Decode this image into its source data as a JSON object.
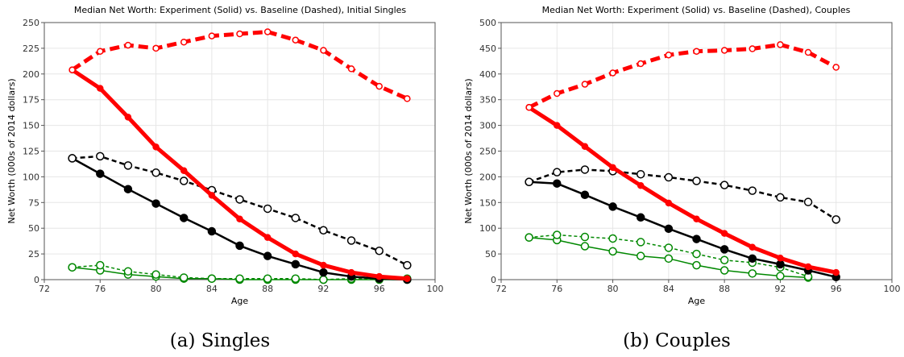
{
  "chart_data": [
    {
      "type": "line",
      "title": "Median Net Worth: Experiment (Solid) vs. Baseline (Dashed), Initial Singles",
      "xlabel": "Age",
      "ylabel": "Net Worth (000s of 2014 dollars)",
      "caption": "(a) Singles",
      "xlim": [
        72,
        100
      ],
      "ylim": [
        0,
        250
      ],
      "xticks": [
        72,
        76,
        80,
        84,
        88,
        92,
        96,
        100
      ],
      "yticks": [
        0,
        25,
        50,
        75,
        100,
        125,
        150,
        175,
        200,
        225,
        250
      ],
      "grid": true,
      "series": [
        {
          "color": "#ff0000",
          "style": "solid",
          "marker": "filled",
          "width": 5,
          "x": [
            74,
            76,
            78,
            80,
            82,
            84,
            86,
            88,
            90,
            92,
            94,
            96,
            98
          ],
          "y": [
            204,
            186,
            158,
            129,
            106,
            82,
            59,
            41,
            25,
            14,
            7,
            3,
            1
          ]
        },
        {
          "color": "#ff0000",
          "style": "dashed",
          "marker": "open",
          "width": 5,
          "x": [
            74,
            76,
            78,
            80,
            82,
            84,
            86,
            88,
            90,
            92,
            94,
            96,
            98
          ],
          "y": [
            204,
            222,
            228,
            225,
            231,
            237,
            239,
            241,
            233,
            223,
            205,
            188,
            176
          ]
        },
        {
          "color": "#000000",
          "style": "solid",
          "marker": "filled",
          "width": 2.5,
          "x": [
            74,
            76,
            78,
            80,
            82,
            84,
            86,
            88,
            90,
            92,
            94,
            96,
            98
          ],
          "y": [
            118,
            103,
            88,
            74,
            60,
            47,
            33,
            23,
            15,
            7,
            3,
            1,
            0
          ]
        },
        {
          "color": "#000000",
          "style": "dashed",
          "marker": "open",
          "width": 2.5,
          "x": [
            74,
            76,
            78,
            80,
            82,
            84,
            86,
            88,
            90,
            92,
            94,
            96,
            98
          ],
          "y": [
            118,
            120,
            111,
            104,
            96,
            87,
            78,
            69,
            60,
            48,
            38,
            28,
            14
          ]
        },
        {
          "color": "#008800",
          "style": "solid",
          "marker": "open",
          "width": 1.5,
          "x": [
            74,
            76,
            78,
            80,
            82,
            84,
            86,
            88,
            90,
            92,
            94,
            96,
            98
          ],
          "y": [
            12,
            9,
            5,
            3,
            1,
            1,
            0,
            0,
            0,
            0,
            0,
            0,
            0
          ]
        },
        {
          "color": "#008800",
          "style": "dashed",
          "marker": "open",
          "width": 1.5,
          "x": [
            74,
            76,
            78,
            80,
            82,
            84,
            86,
            88,
            90,
            92,
            94,
            96,
            98
          ],
          "y": [
            12,
            14,
            8,
            5,
            2,
            1,
            1,
            1,
            1,
            0,
            1,
            1,
            1
          ]
        }
      ]
    },
    {
      "type": "line",
      "title": "Median Net Worth: Experiment (Solid) vs. Baseline (Dashed), Couples",
      "xlabel": "Age",
      "ylabel": "Net Worth (000s of 2014 dollars)",
      "caption": "(b) Couples",
      "xlim": [
        72,
        100
      ],
      "ylim": [
        0,
        500
      ],
      "xticks": [
        72,
        76,
        80,
        84,
        88,
        92,
        96,
        100
      ],
      "yticks": [
        0,
        50,
        100,
        150,
        200,
        250,
        300,
        350,
        400,
        450,
        500
      ],
      "grid": true,
      "series": [
        {
          "color": "#ff0000",
          "style": "solid",
          "marker": "filled",
          "width": 5,
          "x": [
            74,
            76,
            78,
            80,
            82,
            84,
            86,
            88,
            90,
            92,
            94,
            96
          ],
          "y": [
            335,
            300,
            259,
            218,
            183,
            149,
            118,
            90,
            63,
            42,
            25,
            14
          ]
        },
        {
          "color": "#ff0000",
          "style": "dashed",
          "marker": "open",
          "width": 5,
          "x": [
            74,
            76,
            78,
            80,
            82,
            84,
            86,
            88,
            90,
            92,
            94,
            96
          ],
          "y": [
            335,
            362,
            380,
            402,
            420,
            437,
            444,
            446,
            449,
            457,
            442,
            413
          ]
        },
        {
          "color": "#000000",
          "style": "solid",
          "marker": "filled",
          "width": 2.5,
          "x": [
            74,
            76,
            78,
            80,
            82,
            84,
            86,
            88,
            90,
            92,
            94,
            96
          ],
          "y": [
            190,
            187,
            165,
            142,
            121,
            99,
            79,
            59,
            41,
            30,
            18,
            5
          ]
        },
        {
          "color": "#000000",
          "style": "dashed",
          "marker": "open",
          "width": 2.5,
          "x": [
            74,
            76,
            78,
            80,
            82,
            84,
            86,
            88,
            90,
            92,
            94,
            96
          ],
          "y": [
            190,
            209,
            214,
            211,
            205,
            199,
            192,
            184,
            173,
            160,
            151,
            117
          ]
        },
        {
          "color": "#008800",
          "style": "solid",
          "marker": "open",
          "width": 1.5,
          "x": [
            74,
            76,
            78,
            80,
            82,
            84,
            86,
            88,
            90,
            92,
            94
          ],
          "y": [
            82,
            77,
            65,
            55,
            46,
            41,
            28,
            18,
            12,
            7,
            4
          ]
        },
        {
          "color": "#008800",
          "style": "dashed",
          "marker": "open",
          "width": 1.5,
          "x": [
            74,
            76,
            78,
            80,
            82,
            84,
            86,
            88,
            90,
            92,
            94
          ],
          "y": [
            82,
            87,
            83,
            80,
            73,
            62,
            50,
            38,
            33,
            24,
            6
          ]
        }
      ]
    }
  ]
}
